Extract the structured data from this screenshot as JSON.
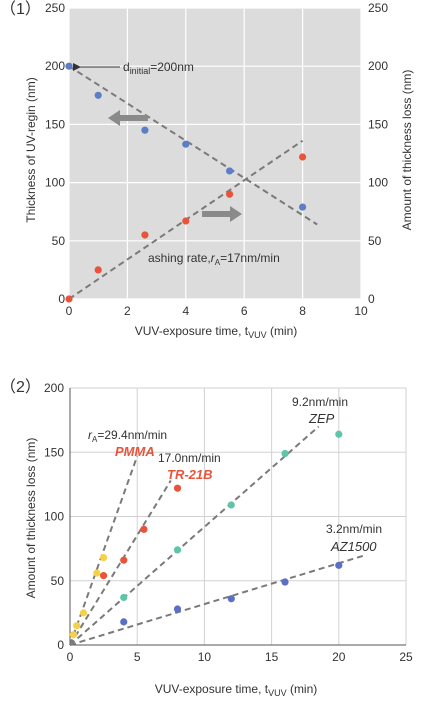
{
  "chart_data": [
    {
      "type": "scatter",
      "panel_label": "（1）",
      "xlabel": "VUV-exposure time, t",
      "xlabel_sub": "VUV",
      "xlabel_unit": " (min)",
      "ylabel": "Thickness of UV-regin (nm)",
      "y2label": "Amount of  thickness loss (nm)",
      "xlim": [
        0,
        10
      ],
      "ylim": [
        0,
        250
      ],
      "y2lim": [
        0,
        250
      ],
      "xticks": [
        "0",
        "2",
        "4",
        "6",
        "8",
        "10"
      ],
      "yticks": [
        "0",
        "50",
        "100",
        "150",
        "200",
        "250"
      ],
      "y2ticks": [
        "0",
        "50",
        "100",
        "150",
        "200",
        "250"
      ],
      "grid": true,
      "series": [
        {
          "axis": "left",
          "color": "#5b7ec7",
          "x": [
            0,
            1,
            2.6,
            4,
            5.5,
            8
          ],
          "y": [
            200,
            175,
            145,
            133,
            110,
            79
          ]
        },
        {
          "axis": "right",
          "color": "#e8533a",
          "x": [
            0,
            1,
            2.6,
            4,
            5.5,
            8
          ],
          "y": [
            0,
            25,
            55,
            67,
            90,
            122
          ]
        }
      ],
      "fit_lines": [
        {
          "x": [
            0,
            8.5
          ],
          "y": [
            200,
            64
          ]
        },
        {
          "x": [
            0,
            8
          ],
          "y": [
            0,
            136
          ]
        }
      ],
      "annotations": {
        "d_initial_prefix": "d",
        "d_initial_sub": "initial",
        "d_initial_value": "=200nm",
        "rate_prefix": "ashing rate,",
        "rate_symbol": "r",
        "rate_sub": "A",
        "rate_value": "=17nm/min"
      },
      "arrow_color": "#888888"
    },
    {
      "type": "scatter",
      "panel_label": "（2）",
      "xlabel": "VUV-exposure time, t",
      "xlabel_sub": "VUV",
      "xlabel_unit": " (min)",
      "ylabel": "Amount of thickness loss (nm)",
      "xlim": [
        0,
        25
      ],
      "ylim": [
        0,
        200
      ],
      "xticks": [
        "0",
        "5",
        "10",
        "15",
        "20",
        "25"
      ],
      "yticks": [
        "0",
        "50",
        "100",
        "150",
        "200"
      ],
      "grid": true,
      "series": [
        {
          "name": "PMMA",
          "color": "#f5d14a",
          "label_color": "#e8533a",
          "rate": "=29.4nm/min",
          "x": [
            0.25,
            0.5,
            1,
            2,
            2.5
          ],
          "y": [
            8,
            15,
            25,
            56,
            68
          ],
          "fit": {
            "x": [
              0,
              5
            ],
            "y": [
              0,
              147
            ]
          }
        },
        {
          "name": "TR-21B",
          "color": "#e8533a",
          "label_color": "#e8533a",
          "rate": "17.0nm/min",
          "x": [
            2.5,
            4,
            5.5,
            8
          ],
          "y": [
            54,
            66,
            90,
            122
          ],
          "fit": {
            "x": [
              0,
              7.5
            ],
            "y": [
              0,
              128
            ]
          }
        },
        {
          "name": "ZEP",
          "color": "#5fc4a8",
          "label_color": "#333333",
          "rate": "9.2nm/min",
          "x": [
            4,
            8,
            12,
            16,
            20
          ],
          "y": [
            37,
            74,
            109,
            149,
            164
          ],
          "fit": {
            "x": [
              0,
              18.5
            ],
            "y": [
              0,
              170
            ]
          }
        },
        {
          "name": "AZ1500",
          "color": "#5b6fc7",
          "label_color": "#333333",
          "rate": "3.2nm/min",
          "x": [
            4,
            8,
            12,
            16,
            20
          ],
          "y": [
            18,
            28,
            36,
            49,
            62
          ],
          "fit": {
            "x": [
              0,
              22
            ],
            "y": [
              0,
              70
            ]
          }
        }
      ],
      "rate_symbol": "r",
      "rate_sub": "A"
    }
  ]
}
